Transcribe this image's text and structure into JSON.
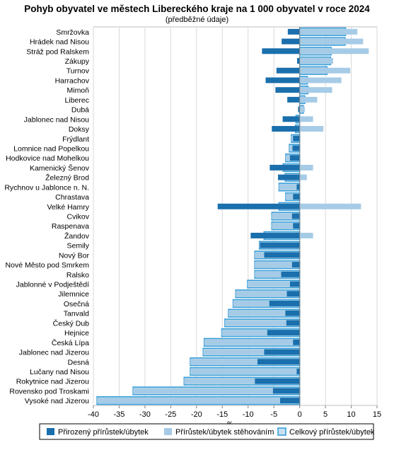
{
  "chart_data": {
    "type": "bar",
    "title": "Pohyb obyvatel ve městech Libereckého kraje na 1 000 obyvatel v roce 2024",
    "subtitle": "(předběžné údaje)",
    "xlabel": "‰",
    "xlim": [
      -40,
      15
    ],
    "xticks": [
      "-40",
      "-35",
      "-30",
      "-25",
      "-20",
      "-15",
      "-10",
      "-5",
      "0",
      "5",
      "10",
      "15"
    ],
    "grid": true,
    "legend_position": "bottom",
    "colors": {
      "natural": "#1a6fac",
      "migration": "#a6cbe6",
      "total_border": "#3a9fd8",
      "total_fill": "#c8e0f2"
    },
    "categories": [
      "Smržovka",
      "Hrádek nad Nisou",
      "Stráž pod Ralskem",
      "Zákupy",
      "Turnov",
      "Harrachov",
      "Mimoň",
      "Liberec",
      "Dubá",
      "Jablonec nad Nisou",
      "Doksy",
      "Frýdlant",
      "Lomnice nad Popelkou",
      "Hodkovice nad Mohelkou",
      "Kamenický Šenov",
      "Železný Brod",
      "Rychnov u Jablonce n. N.",
      "Chrastava",
      "Velké Hamry",
      "Cvikov",
      "Raspenava",
      "Žandov",
      "Semily",
      "Nový Bor",
      "Nové Město pod Smrkem",
      "Ralsko",
      "Jablonné v Podještědí",
      "Jilemnice",
      "Osečná",
      "Tanvald",
      "Český Dub",
      "Hejnice",
      "Česká Lípa",
      "Jablonec nad Jizerou",
      "Desná",
      "Lučany nad Nisou",
      "Rokytnice nad Jizerou",
      "Rovensko pod Troskami",
      "Vysoké nad Jizerou"
    ],
    "series": [
      {
        "name": "Přirozený přírůstek/úbytek",
        "values": [
          -2.3,
          -3.5,
          -7.3,
          -0.5,
          -4.5,
          -6.6,
          -4.7,
          -2.4,
          -0.3,
          -3.3,
          -5.4,
          -1.3,
          -1.4,
          -1.9,
          -5.8,
          -4.2,
          -0.6,
          -1.3,
          -15.9,
          -1.5,
          -1.3,
          -9.5,
          -7.7,
          -6.9,
          -1.5,
          -3.6,
          -1.9,
          -2.5,
          -5.9,
          -2.8,
          -2.6,
          -6.3,
          -1.3,
          -6.9,
          -8.2,
          -0.6,
          -8.7,
          -5.2,
          -3.8
        ]
      },
      {
        "name": "Přírůstek/úbytek stěhováním",
        "values": [
          11.2,
          12.3,
          13.4,
          6.5,
          9.8,
          8.1,
          6.3,
          3.4,
          1.0,
          2.6,
          4.6,
          -0.3,
          -0.6,
          -0.8,
          2.6,
          1.4,
          -3.4,
          -1.4,
          11.9,
          -3.9,
          -4.1,
          2.6,
          -0.1,
          -1.8,
          -7.2,
          -5.1,
          -8.2,
          -9.9,
          -7.0,
          -11.0,
          -11.9,
          -8.8,
          -17.2,
          -11.8,
          -13.0,
          -20.6,
          -13.7,
          -27.1,
          -35.5
        ]
      },
      {
        "name": "Celkový přírůstek/úbytek",
        "values": [
          8.9,
          8.8,
          6.1,
          6.0,
          5.3,
          1.5,
          1.6,
          1.0,
          0.7,
          -0.7,
          -0.8,
          -1.6,
          -2.0,
          -2.7,
          -3.2,
          -2.8,
          -4.0,
          -2.7,
          -4.0,
          -5.4,
          -5.4,
          -6.9,
          -7.8,
          -8.7,
          -8.7,
          -8.7,
          -10.1,
          -12.4,
          -12.9,
          -13.8,
          -14.5,
          -15.1,
          -18.5,
          -18.7,
          -21.2,
          -21.2,
          -22.4,
          -32.3,
          -39.3
        ]
      }
    ]
  }
}
